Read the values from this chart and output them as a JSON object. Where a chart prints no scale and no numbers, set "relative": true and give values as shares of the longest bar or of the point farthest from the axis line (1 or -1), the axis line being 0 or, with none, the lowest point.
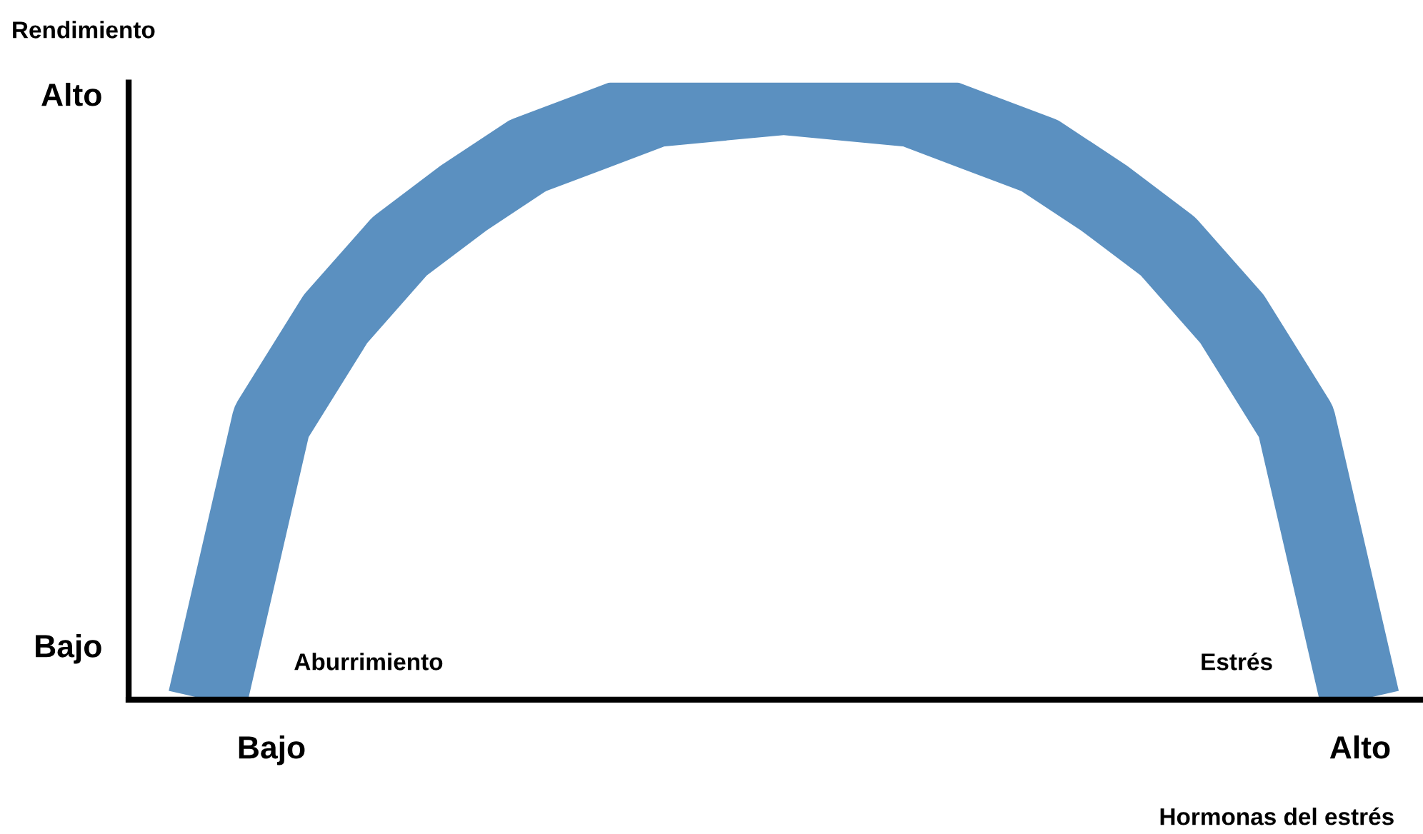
{
  "chart_data": {
    "type": "line",
    "relative": true,
    "ylabel": "Rendimiento",
    "xlabel": "Hormonas del estrés",
    "categories": [
      null,
      "Bajo",
      null,
      null,
      null,
      null,
      null,
      null,
      null,
      null,
      null,
      null,
      null,
      null,
      null,
      null,
      null,
      null,
      "Alto"
    ],
    "series": [
      {
        "values": [
          0,
          0.46,
          0.63,
          0.75,
          0.83,
          0.9,
          0.94,
          0.98,
          0.99,
          1.0,
          0.99,
          0.98,
          0.94,
          0.9,
          0.83,
          0.75,
          0.63,
          0.46,
          0
        ],
        "color": "#5b90c0"
      }
    ],
    "annotations": [
      "Bajo",
      "Alto",
      "Aburrimiento",
      "Estrés"
    ]
  }
}
